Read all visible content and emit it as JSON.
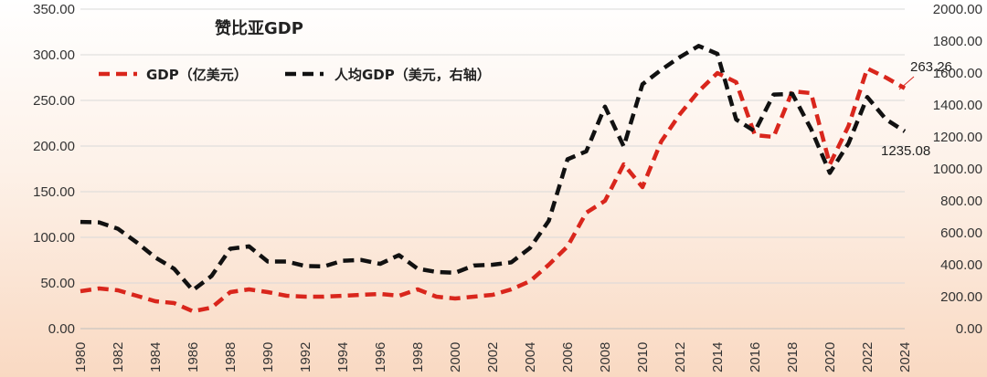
{
  "chart_data": {
    "type": "line",
    "title": "赞比亚GDP",
    "x": [
      "1980",
      "1981",
      "1982",
      "1983",
      "1984",
      "1985",
      "1986",
      "1987",
      "1988",
      "1989",
      "1990",
      "1991",
      "1992",
      "1993",
      "1994",
      "1995",
      "1996",
      "1997",
      "1998",
      "1999",
      "2000",
      "2001",
      "2002",
      "2003",
      "2004",
      "2005",
      "2006",
      "2007",
      "2008",
      "2009",
      "2010",
      "2011",
      "2012",
      "2013",
      "2014",
      "2015",
      "2016",
      "2017",
      "2018",
      "2019",
      "2020",
      "2021",
      "2022",
      "2023",
      "2024"
    ],
    "x_tick_labels": [
      "1980",
      "1982",
      "1984",
      "1986",
      "1988",
      "1990",
      "1992",
      "1994",
      "1996",
      "1998",
      "2000",
      "2002",
      "2004",
      "2006",
      "2008",
      "2010",
      "2012",
      "2014",
      "2016",
      "2018",
      "2020",
      "2022",
      "2024"
    ],
    "left_axis": {
      "ylim": [
        0,
        350
      ],
      "tick_labels": [
        "0.00",
        "50.00",
        "100.00",
        "150.00",
        "200.00",
        "250.00",
        "300.00",
        "350.00"
      ]
    },
    "right_axis": {
      "ylim": [
        0,
        2000
      ],
      "tick_labels": [
        "0.00",
        "200.00",
        "400.00",
        "600.00",
        "800.00",
        "1000.00",
        "1200.00",
        "1400.00",
        "1600.00",
        "1800.00",
        "2000.00"
      ]
    },
    "grid": true,
    "legend_position": "top-left",
    "series": [
      {
        "name": "GDP（亿美元）",
        "axis": "left",
        "color": "#d9261c",
        "values": [
          41,
          44,
          42,
          36,
          30,
          28,
          19,
          23,
          40,
          43,
          40,
          36,
          35,
          35,
          36,
          37,
          38,
          36,
          43,
          35,
          33,
          35,
          37,
          43,
          52,
          70,
          90,
          127,
          140,
          180,
          155,
          205,
          235,
          260,
          280,
          270,
          212,
          210,
          260,
          258,
          180,
          222,
          285,
          275,
          263.26
        ]
      },
      {
        "name": "人均GDP（美元，右轴）",
        "axis": "right",
        "color": "#111111",
        "values": [
          668,
          665,
          625,
          540,
          445,
          375,
          240,
          330,
          500,
          515,
          420,
          420,
          392,
          390,
          425,
          430,
          405,
          460,
          375,
          355,
          350,
          395,
          400,
          415,
          505,
          675,
          1060,
          1110,
          1390,
          1140,
          1530,
          1620,
          1700,
          1770,
          1720,
          1310,
          1235,
          1465,
          1470,
          1250,
          975,
          1160,
          1450,
          1310,
          1235.08
        ]
      }
    ],
    "annotations": [
      {
        "label": "263.26",
        "series": 0,
        "year": "2024"
      },
      {
        "label": "1235.08",
        "series": 1,
        "year": "2024"
      }
    ]
  }
}
